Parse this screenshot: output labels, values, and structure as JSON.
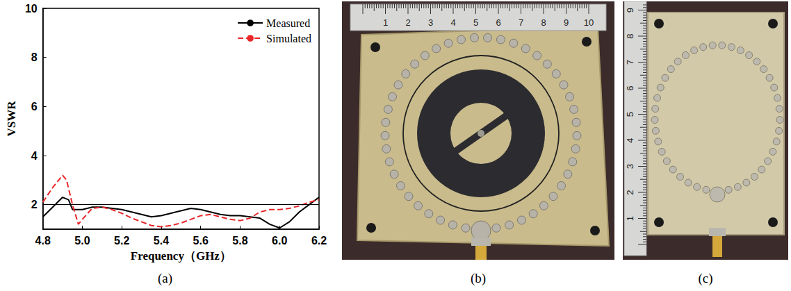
{
  "chart_data": {
    "type": "line",
    "x_label": "Frequency（GHz）",
    "y_label": "VSWR",
    "xlim": [
      4.8,
      6.2
    ],
    "xticks": [
      4.8,
      {
        "value": 5,
        "label": "5.0"
      },
      5.2,
      5.4,
      5.6,
      5.8,
      {
        "value": 6,
        "label": "6.0"
      },
      6.2
    ],
    "ylim": [
      1,
      10
    ],
    "yticks": [
      2,
      4,
      6,
      8,
      10
    ],
    "grid": false,
    "legend": "upper right",
    "hlines": [
      2
    ],
    "series": [
      {
        "name": "Measured",
        "color": "#000000",
        "line_style": "solid",
        "marker": "none",
        "x": [
          4.8,
          4.85,
          4.9,
          4.93,
          4.95,
          5.0,
          5.05,
          5.1,
          5.15,
          5.2,
          5.25,
          5.3,
          5.35,
          5.4,
          5.45,
          5.5,
          5.55,
          5.6,
          5.65,
          5.7,
          5.75,
          5.8,
          5.85,
          5.9,
          5.95,
          6.0,
          6.05,
          6.1,
          6.15,
          6.2
        ],
        "values": [
          1.5,
          1.9,
          2.3,
          2.2,
          1.8,
          1.8,
          1.9,
          1.9,
          1.85,
          1.8,
          1.7,
          1.6,
          1.5,
          1.55,
          1.65,
          1.75,
          1.85,
          1.8,
          1.7,
          1.6,
          1.55,
          1.55,
          1.5,
          1.45,
          1.2,
          1.05,
          1.3,
          1.7,
          2.0,
          2.3
        ]
      },
      {
        "name": "Simulated",
        "color": "#e8262a",
        "line_style": "dashed",
        "marker": "none",
        "x": [
          4.8,
          4.85,
          4.9,
          4.92,
          4.95,
          4.98,
          5.0,
          5.05,
          5.1,
          5.15,
          5.2,
          5.25,
          5.3,
          5.35,
          5.4,
          5.45,
          5.5,
          5.55,
          5.6,
          5.65,
          5.7,
          5.75,
          5.8,
          5.85,
          5.9,
          5.95,
          6.0,
          6.05,
          6.1,
          6.15,
          6.2
        ],
        "values": [
          2.1,
          2.7,
          3.2,
          3.0,
          2.0,
          1.2,
          1.4,
          1.85,
          1.9,
          1.8,
          1.65,
          1.45,
          1.3,
          1.15,
          1.1,
          1.15,
          1.25,
          1.4,
          1.55,
          1.6,
          1.5,
          1.4,
          1.35,
          1.45,
          1.7,
          1.8,
          1.8,
          1.85,
          1.95,
          2.1,
          2.2
        ]
      }
    ]
  },
  "panel_labels": [
    "(a)",
    "(b)",
    "(c)"
  ],
  "photos": [
    {
      "ruler": [
        1,
        2,
        3,
        4,
        5,
        6,
        7,
        8,
        9,
        10
      ]
    },
    {
      "ruler": [
        1,
        2,
        3,
        4,
        5,
        6,
        7,
        8,
        9
      ]
    }
  ]
}
